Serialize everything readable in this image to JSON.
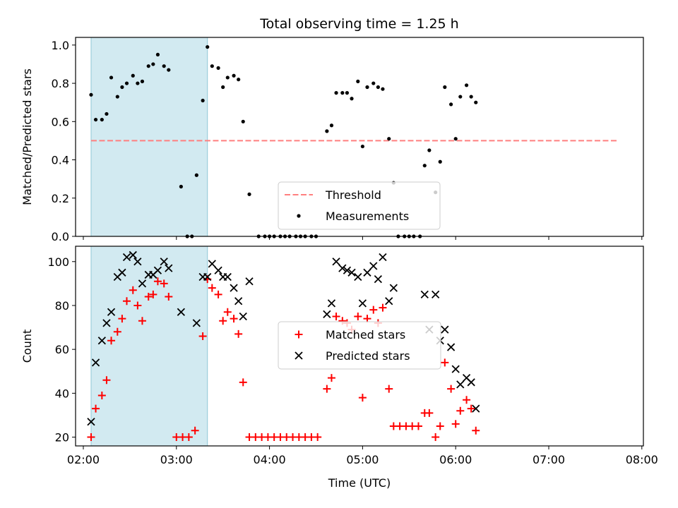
{
  "chart_data": {
    "title": "Total observing time = 1.25 h",
    "xlabel": "Time (UTC)",
    "x_ticks": [
      "02:00",
      "03:00",
      "04:00",
      "05:00",
      "06:00",
      "07:00",
      "08:00"
    ],
    "x_range": [
      "01:55",
      "08:01"
    ],
    "shaded_interval": [
      "02:05",
      "03:20"
    ],
    "colors": {
      "shade": "#add8e6",
      "threshold": "#ff7f7f",
      "measurements": "#000000",
      "matched": "#ff0000",
      "predicted": "#000000"
    },
    "panels": [
      {
        "type": "scatter",
        "ylabel": "Matched/Predicted stars",
        "ylim": [
          0,
          1.04
        ],
        "y_ticks": [
          "0.0",
          "0.2",
          "0.4",
          "0.6",
          "0.8",
          "1.0"
        ],
        "threshold": {
          "name": "Threshold",
          "y": 0.5,
          "x_start": "02:05",
          "x_end": "07:45"
        },
        "series": [
          {
            "name": "Measurements",
            "marker": "dot",
            "points": [
              [
                "02:05",
                0.74
              ],
              [
                "02:08",
                0.61
              ],
              [
                "02:12",
                0.61
              ],
              [
                "02:15",
                0.64
              ],
              [
                "02:18",
                0.83
              ],
              [
                "02:22",
                0.73
              ],
              [
                "02:25",
                0.78
              ],
              [
                "02:28",
                0.8
              ],
              [
                "02:32",
                0.84
              ],
              [
                "02:35",
                0.8
              ],
              [
                "02:38",
                0.81
              ],
              [
                "02:42",
                0.89
              ],
              [
                "02:45",
                0.9
              ],
              [
                "02:48",
                0.95
              ],
              [
                "02:52",
                0.89
              ],
              [
                "02:55",
                0.87
              ],
              [
                "03:03",
                0.26
              ],
              [
                "03:07",
                0.0
              ],
              [
                "03:10",
                0.0
              ],
              [
                "03:13",
                0.32
              ],
              [
                "03:17",
                0.71
              ],
              [
                "03:20",
                0.99
              ],
              [
                "03:23",
                0.89
              ],
              [
                "03:27",
                0.88
              ],
              [
                "03:30",
                0.78
              ],
              [
                "03:33",
                0.83
              ],
              [
                "03:37",
                0.84
              ],
              [
                "03:40",
                0.82
              ],
              [
                "03:43",
                0.6
              ],
              [
                "03:47",
                0.22
              ],
              [
                "03:53",
                0.0
              ],
              [
                "03:57",
                0.0
              ],
              [
                "04:00",
                0.0
              ],
              [
                "04:03",
                0.0
              ],
              [
                "04:07",
                0.0
              ],
              [
                "04:10",
                0.0
              ],
              [
                "04:13",
                0.0
              ],
              [
                "04:17",
                0.0
              ],
              [
                "04:20",
                0.0
              ],
              [
                "04:23",
                0.0
              ],
              [
                "04:27",
                0.0
              ],
              [
                "04:30",
                0.0
              ],
              [
                "04:37",
                0.55
              ],
              [
                "04:40",
                0.58
              ],
              [
                "04:43",
                0.75
              ],
              [
                "04:47",
                0.75
              ],
              [
                "04:50",
                0.75
              ],
              [
                "04:53",
                0.72
              ],
              [
                "04:57",
                0.81
              ],
              [
                "05:00",
                0.47
              ],
              [
                "05:03",
                0.78
              ],
              [
                "05:07",
                0.8
              ],
              [
                "05:10",
                0.78
              ],
              [
                "05:13",
                0.77
              ],
              [
                "05:17",
                0.51
              ],
              [
                "05:20",
                0.28
              ],
              [
                "05:23",
                0.0
              ],
              [
                "05:27",
                0.0
              ],
              [
                "05:30",
                0.0
              ],
              [
                "05:33",
                0.0
              ],
              [
                "05:37",
                0.0
              ],
              [
                "05:40",
                0.37
              ],
              [
                "05:43",
                0.45
              ],
              [
                "05:47",
                0.23
              ],
              [
                "05:50",
                0.39
              ],
              [
                "05:53",
                0.78
              ],
              [
                "05:57",
                0.69
              ],
              [
                "06:00",
                0.51
              ],
              [
                "06:03",
                0.73
              ],
              [
                "06:07",
                0.79
              ],
              [
                "06:10",
                0.73
              ],
              [
                "06:13",
                0.7
              ]
            ]
          }
        ],
        "legend": {
          "placement": "lower-center",
          "entries": [
            "Threshold",
            "Measurements"
          ]
        }
      },
      {
        "type": "scatter",
        "ylabel": "Count",
        "ylim": [
          16,
          107
        ],
        "y_ticks": [
          "20",
          "40",
          "60",
          "80",
          "100"
        ],
        "series": [
          {
            "name": "Matched stars",
            "marker": "plus",
            "points": [
              [
                "02:05",
                20
              ],
              [
                "02:08",
                33
              ],
              [
                "02:12",
                39
              ],
              [
                "02:15",
                46
              ],
              [
                "02:18",
                64
              ],
              [
                "02:22",
                68
              ],
              [
                "02:25",
                74
              ],
              [
                "02:28",
                82
              ],
              [
                "02:32",
                87
              ],
              [
                "02:35",
                80
              ],
              [
                "02:38",
                73
              ],
              [
                "02:42",
                84
              ],
              [
                "02:45",
                85
              ],
              [
                "02:48",
                91
              ],
              [
                "02:52",
                90
              ],
              [
                "02:55",
                84
              ],
              [
                "03:00",
                20
              ],
              [
                "03:04",
                20
              ],
              [
                "03:08",
                20
              ],
              [
                "03:12",
                23
              ],
              [
                "03:17",
                66
              ],
              [
                "03:20",
                92
              ],
              [
                "03:23",
                88
              ],
              [
                "03:27",
                85
              ],
              [
                "03:30",
                73
              ],
              [
                "03:33",
                77
              ],
              [
                "03:37",
                74
              ],
              [
                "03:40",
                67
              ],
              [
                "03:43",
                45
              ],
              [
                "03:47",
                20
              ],
              [
                "03:51",
                20
              ],
              [
                "03:55",
                20
              ],
              [
                "03:59",
                20
              ],
              [
                "04:03",
                20
              ],
              [
                "04:07",
                20
              ],
              [
                "04:11",
                20
              ],
              [
                "04:15",
                20
              ],
              [
                "04:19",
                20
              ],
              [
                "04:23",
                20
              ],
              [
                "04:27",
                20
              ],
              [
                "04:31",
                20
              ],
              [
                "04:37",
                42
              ],
              [
                "04:40",
                47
              ],
              [
                "04:43",
                75
              ],
              [
                "04:47",
                73
              ],
              [
                "04:50",
                72
              ],
              [
                "04:53",
                69
              ],
              [
                "04:57",
                75
              ],
              [
                "05:00",
                38
              ],
              [
                "05:03",
                74
              ],
              [
                "05:07",
                78
              ],
              [
                "05:10",
                72
              ],
              [
                "05:13",
                79
              ],
              [
                "05:17",
                42
              ],
              [
                "05:20",
                25
              ],
              [
                "05:24",
                25
              ],
              [
                "05:28",
                25
              ],
              [
                "05:32",
                25
              ],
              [
                "05:36",
                25
              ],
              [
                "05:40",
                31
              ],
              [
                "05:43",
                31
              ],
              [
                "05:47",
                20
              ],
              [
                "05:50",
                25
              ],
              [
                "05:53",
                54
              ],
              [
                "05:57",
                42
              ],
              [
                "06:00",
                26
              ],
              [
                "06:03",
                32
              ],
              [
                "06:07",
                37
              ],
              [
                "06:10",
                33
              ],
              [
                "06:13",
                23
              ]
            ]
          },
          {
            "name": "Predicted stars",
            "marker": "x",
            "points": [
              [
                "02:05",
                27
              ],
              [
                "02:08",
                54
              ],
              [
                "02:12",
                64
              ],
              [
                "02:15",
                72
              ],
              [
                "02:18",
                77
              ],
              [
                "02:22",
                93
              ],
              [
                "02:25",
                95
              ],
              [
                "02:28",
                102
              ],
              [
                "02:32",
                103
              ],
              [
                "02:35",
                100
              ],
              [
                "02:38",
                90
              ],
              [
                "02:42",
                94
              ],
              [
                "02:45",
                94
              ],
              [
                "02:48",
                96
              ],
              [
                "02:52",
                100
              ],
              [
                "02:55",
                97
              ],
              [
                "03:03",
                77
              ],
              [
                "03:13",
                72
              ],
              [
                "03:17",
                93
              ],
              [
                "03:20",
                93
              ],
              [
                "03:23",
                99
              ],
              [
                "03:27",
                96
              ],
              [
                "03:30",
                93
              ],
              [
                "03:33",
                93
              ],
              [
                "03:37",
                88
              ],
              [
                "03:40",
                82
              ],
              [
                "03:43",
                75
              ],
              [
                "03:47",
                91
              ],
              [
                "04:37",
                76
              ],
              [
                "04:40",
                81
              ],
              [
                "04:43",
                100
              ],
              [
                "04:47",
                97
              ],
              [
                "04:50",
                96
              ],
              [
                "04:53",
                95
              ],
              [
                "04:57",
                93
              ],
              [
                "05:00",
                81
              ],
              [
                "05:03",
                95
              ],
              [
                "05:07",
                98
              ],
              [
                "05:10",
                92
              ],
              [
                "05:13",
                102
              ],
              [
                "05:17",
                82
              ],
              [
                "05:20",
                88
              ],
              [
                "05:40",
                85
              ],
              [
                "05:43",
                69
              ],
              [
                "05:47",
                85
              ],
              [
                "05:50",
                64
              ],
              [
                "05:53",
                69
              ],
              [
                "05:57",
                61
              ],
              [
                "06:00",
                51
              ],
              [
                "06:03",
                44
              ],
              [
                "06:07",
                47
              ],
              [
                "06:10",
                45
              ],
              [
                "06:13",
                33
              ]
            ]
          }
        ],
        "legend": {
          "placement": "center",
          "entries": [
            "Matched stars",
            "Predicted stars"
          ]
        }
      }
    ]
  }
}
